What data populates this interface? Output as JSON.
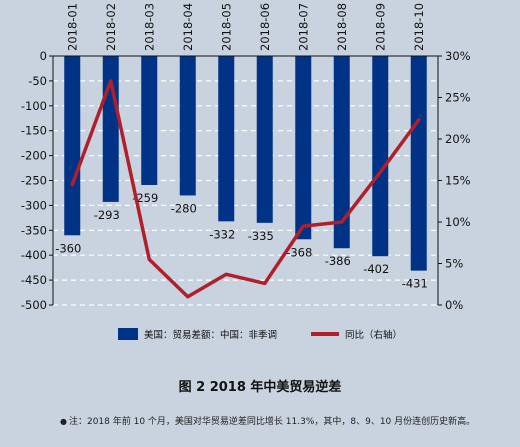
{
  "chart_data": {
    "type": "bar",
    "categories": [
      "2018-01",
      "2018-02",
      "2018-03",
      "2018-04",
      "2018-05",
      "2018-06",
      "2018-07",
      "2018-08",
      "2018-09",
      "2018-10"
    ],
    "series": [
      {
        "name": "美国：贸易差额：中国：非季调",
        "type": "bar",
        "axis": "left",
        "values": [
          -360,
          -293,
          -259,
          -280,
          -332,
          -335,
          -368,
          -386,
          -402,
          -431
        ],
        "color": "#003385"
      },
      {
        "name": "同比（右轴）",
        "type": "line",
        "axis": "right",
        "values": [
          14.5,
          27.0,
          5.5,
          1.0,
          3.7,
          2.6,
          9.5,
          10.0,
          16.0,
          22.3
        ],
        "color": "#b01f2c"
      }
    ],
    "y_left": {
      "min": -500,
      "max": 0,
      "ticks": [
        "0",
        "-50",
        "-100",
        "-150",
        "-200",
        "-250",
        "-300",
        "-350",
        "-400",
        "-450",
        "-500"
      ]
    },
    "y_right": {
      "min": 0,
      "max": 30,
      "ticks": [
        "30%",
        "25%",
        "20%",
        "15%",
        "10%",
        "5%",
        "0%"
      ]
    },
    "bar_labels": [
      "-360",
      "-293",
      "-259",
      "-280",
      "-332",
      "-335",
      "-368",
      "-386",
      "-402",
      "-431"
    ],
    "grid": "dashed-horizontal",
    "legend_position": "bottom"
  },
  "legend": {
    "bar_label": "美国：贸易差额：中国：非季调",
    "line_label": "同比（右轴）"
  },
  "caption": "图 2 2018 年中美贸易逆差",
  "note": "注：2018 年前 10 个月，美国对华贸易逆差同比增长 11.3%，其中，8、9、10 月份连创历史新高。"
}
